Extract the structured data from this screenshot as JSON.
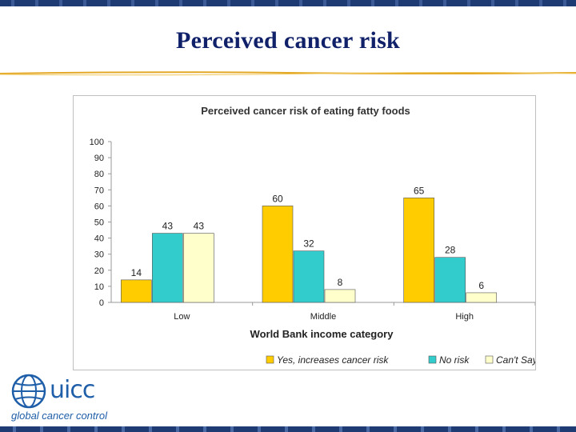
{
  "slide": {
    "title": "Perceived cancer risk"
  },
  "logo": {
    "wordmark": "uicc",
    "tagline": "global cancer control",
    "icon": "globe-icon"
  },
  "colors": {
    "title": "#10216a",
    "series": [
      "#ffcc00",
      "#33cccc",
      "#ffffcc"
    ]
  },
  "chart_data": {
    "type": "bar",
    "title": "Perceived cancer risk of eating fatty foods",
    "xlabel": "World Bank income category",
    "ylabel": "",
    "categories": [
      "Low",
      "Middle",
      "High"
    ],
    "series": [
      {
        "name": "Yes, increases cancer risk",
        "values": [
          14,
          60,
          65
        ]
      },
      {
        "name": "No risk",
        "values": [
          43,
          32,
          28
        ]
      },
      {
        "name": "Can't Say",
        "values": [
          43,
          8,
          6
        ]
      }
    ],
    "ylim": [
      0,
      100
    ],
    "yticks": [
      0,
      10,
      20,
      30,
      40,
      50,
      60,
      70,
      80,
      90,
      100
    ],
    "grid": false,
    "legend": "bottom-right",
    "data_labels": true
  }
}
